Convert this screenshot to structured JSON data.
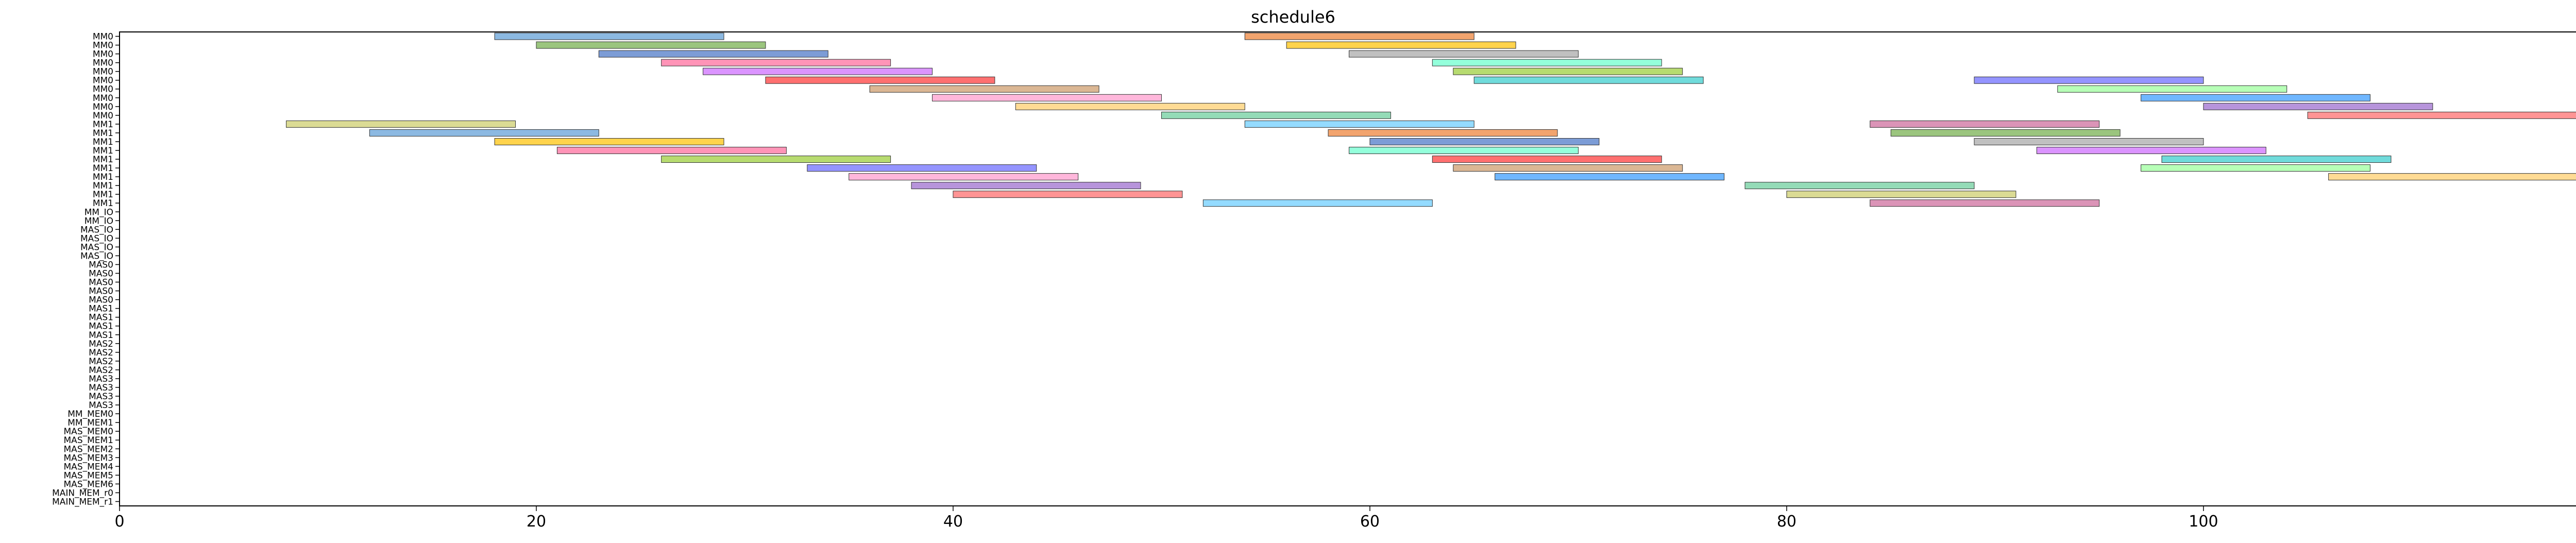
{
  "chart_data": {
    "type": "gantt",
    "title": "schedule6",
    "xlabel": "",
    "ylabel": "",
    "xlim": [
      0,
      118
    ],
    "xticks": [
      0,
      20,
      40,
      60,
      80,
      100
    ],
    "grid": false,
    "legend": "none",
    "rows": [
      "MM0",
      "MM0",
      "MM0",
      "MM0",
      "MM0",
      "MM0",
      "MM0",
      "MM0",
      "MM0",
      "MM0",
      "MM1",
      "MM1",
      "MM1",
      "MM1",
      "MM1",
      "MM1",
      "MM1",
      "MM1",
      "MM1",
      "MM1",
      "MM_IO",
      "MM_IO",
      "MAS_IO",
      "MAS_IO",
      "MAS_IO",
      "MAS_IO",
      "MAS0",
      "MAS0",
      "MAS0",
      "MAS0",
      "MAS0",
      "MAS1",
      "MAS1",
      "MAS1",
      "MAS1",
      "MAS2",
      "MAS2",
      "MAS2",
      "MAS2",
      "MAS3",
      "MAS3",
      "MAS3",
      "MAS3",
      "MM_MEM0",
      "MM_MEM1",
      "MAS_MEM0",
      "MAS_MEM1",
      "MAS_MEM2",
      "MAS_MEM3",
      "MAS_MEM4",
      "MAS_MEM5",
      "MAS_MEM6",
      "MAIN_MEM_r0",
      "MAIN_MEM_r1"
    ],
    "row_labels_visible": [
      "MM0",
      "MM0",
      "MM0",
      "MM0",
      "MM0",
      "MM0",
      "MM0",
      "MM0",
      "MM0",
      "MM0",
      "MM1",
      "MM1",
      "MM1",
      "MM1",
      "MM1",
      "MM1",
      "MM1",
      "MM1",
      "MM1",
      "MM1",
      "MM_IO",
      "MM_IO",
      "MAS_IO",
      "MAS_IO",
      "MAS_IO",
      "MAS_IO",
      "MAS0",
      "MAS0",
      "MAS0",
      "MAS0",
      "MAS0",
      "MAS1",
      "MAS1",
      "MAS1",
      "MAS1",
      "MAS2",
      "MAS2",
      "MAS2",
      "MAS2",
      "MAS3",
      "MAS3",
      "MAS3",
      "MAS3",
      "MM_MEM0",
      "MM_MEM1",
      "MAS_MEM0",
      "MAS_MEM1",
      "MAS_MEM2",
      "MAS_MEM3",
      "MAS_MEM4",
      "MAS_MEM5",
      "MAS_MEM6",
      "MAIN_MEM_r0",
      "MAIN_MEM_r1"
    ],
    "palette": [
      "#5b9bd5",
      "#ed7d31",
      "#70ad47",
      "#ffc000",
      "#4472c4",
      "#a5a5a5",
      "#ff6699",
      "#66ffcc",
      "#cc66ff",
      "#99cc33",
      "#ff3333",
      "#33cccc",
      "#6666ff",
      "#cc9966",
      "#99ff99",
      "#ff99cc",
      "#3399ff",
      "#ffcc66",
      "#9966cc",
      "#66cc99",
      "#ff6666",
      "#cccc66",
      "#66ccff",
      "#cc6699"
    ],
    "tasks": [
      {
        "row": 0,
        "start": 18,
        "end": 29,
        "c": 0
      },
      {
        "row": 0,
        "start": 54,
        "end": 65,
        "c": 1
      },
      {
        "row": 1,
        "start": 20,
        "end": 31,
        "c": 2
      },
      {
        "row": 1,
        "start": 56,
        "end": 67,
        "c": 3
      },
      {
        "row": 2,
        "start": 23,
        "end": 34,
        "c": 4
      },
      {
        "row": 2,
        "start": 59,
        "end": 70,
        "c": 5
      },
      {
        "row": 3,
        "start": 26,
        "end": 37,
        "c": 6
      },
      {
        "row": 3,
        "start": 63,
        "end": 74,
        "c": 7
      },
      {
        "row": 4,
        "start": 28,
        "end": 39,
        "c": 8
      },
      {
        "row": 4,
        "start": 64,
        "end": 75,
        "c": 9
      },
      {
        "row": 5,
        "start": 31,
        "end": 42,
        "c": 10
      },
      {
        "row": 5,
        "start": 65,
        "end": 76,
        "c": 11
      },
      {
        "row": 5,
        "start": 89,
        "end": 100,
        "c": 12
      },
      {
        "row": 6,
        "start": 36,
        "end": 47,
        "c": 13
      },
      {
        "row": 6,
        "start": 93,
        "end": 104,
        "c": 14
      },
      {
        "row": 7,
        "start": 39,
        "end": 50,
        "c": 15
      },
      {
        "row": 7,
        "start": 97,
        "end": 108,
        "c": 16
      },
      {
        "row": 8,
        "start": 43,
        "end": 54,
        "c": 17
      },
      {
        "row": 8,
        "start": 100,
        "end": 111,
        "c": 18
      },
      {
        "row": 9,
        "start": 50,
        "end": 61,
        "c": 19
      },
      {
        "row": 9,
        "start": 105,
        "end": 118,
        "c": 20
      },
      {
        "row": 10,
        "start": 8,
        "end": 19,
        "c": 21
      },
      {
        "row": 10,
        "start": 54,
        "end": 65,
        "c": 22
      },
      {
        "row": 10,
        "start": 84,
        "end": 95,
        "c": 23
      },
      {
        "row": 11,
        "start": 12,
        "end": 23,
        "c": 0
      },
      {
        "row": 11,
        "start": 58,
        "end": 69,
        "c": 1
      },
      {
        "row": 11,
        "start": 85,
        "end": 96,
        "c": 2
      },
      {
        "row": 12,
        "start": 18,
        "end": 29,
        "c": 3
      },
      {
        "row": 12,
        "start": 60,
        "end": 71,
        "c": 4
      },
      {
        "row": 12,
        "start": 89,
        "end": 100,
        "c": 5
      },
      {
        "row": 13,
        "start": 21,
        "end": 32,
        "c": 6
      },
      {
        "row": 13,
        "start": 59,
        "end": 70,
        "c": 7
      },
      {
        "row": 13,
        "start": 92,
        "end": 103,
        "c": 8
      },
      {
        "row": 14,
        "start": 26,
        "end": 37,
        "c": 9
      },
      {
        "row": 14,
        "start": 63,
        "end": 74,
        "c": 10
      },
      {
        "row": 14,
        "start": 98,
        "end": 109,
        "c": 11
      },
      {
        "row": 15,
        "start": 33,
        "end": 44,
        "c": 12
      },
      {
        "row": 15,
        "start": 64,
        "end": 75,
        "c": 13
      },
      {
        "row": 15,
        "start": 97,
        "end": 108,
        "c": 14
      },
      {
        "row": 16,
        "start": 35,
        "end": 46,
        "c": 15
      },
      {
        "row": 16,
        "start": 66,
        "end": 77,
        "c": 16
      },
      {
        "row": 16,
        "start": 106,
        "end": 118,
        "c": 17
      },
      {
        "row": 17,
        "start": 38,
        "end": 49,
        "c": 18
      },
      {
        "row": 17,
        "start": 78,
        "end": 89,
        "c": 19
      },
      {
        "row": 18,
        "start": 40,
        "end": 51,
        "c": 20
      },
      {
        "row": 18,
        "start": 80,
        "end": 91,
        "c": 21
      },
      {
        "row": 19,
        "start": 52,
        "end": 63,
        "c": 22
      },
      {
        "row": 19,
        "start": 84,
        "end": 95,
        "c": 23
      }
    ]
  }
}
